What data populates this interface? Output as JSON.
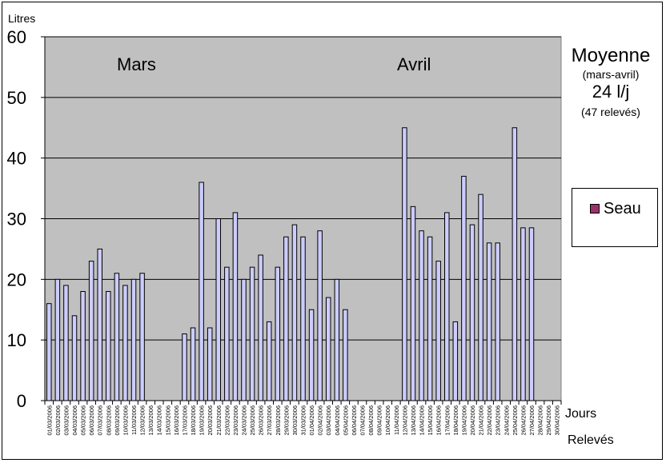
{
  "chart_data": {
    "type": "bar",
    "ylabel": "Litres",
    "ylim": [
      0,
      60
    ],
    "yticks": [
      0,
      10,
      20,
      30,
      40,
      50,
      60
    ],
    "grid": true,
    "plot_background": "#c0c0c0",
    "bar_color": "#ccccff",
    "months": [
      "Mars",
      "Avril"
    ],
    "categories": [
      "01/03/2006",
      "02/03/2006",
      "03/03/2006",
      "04/03/2006",
      "05/03/2006",
      "06/03/2006",
      "07/03/2006",
      "08/03/2006",
      "09/03/2006",
      "10/03/2006",
      "11/03/2006",
      "12/03/2006",
      "13/03/2006",
      "14/03/2006",
      "15/03/2006",
      "16/03/2006",
      "17/03/2006",
      "18/03/2006",
      "19/03/2006",
      "20/03/2006",
      "21/03/2006",
      "22/03/2006",
      "23/03/2006",
      "24/03/2006",
      "25/03/2006",
      "26/03/2006",
      "27/03/2006",
      "28/03/2006",
      "29/03/2006",
      "30/03/2006",
      "31/03/2006",
      "01/04/2006",
      "02/04/2006",
      "03/04/2006",
      "04/04/2006",
      "05/04/2006",
      "06/04/2006",
      "07/04/2006",
      "08/04/2006",
      "09/04/2006",
      "10/04/2006",
      "11/04/2006",
      "12/04/2006",
      "13/04/2006",
      "14/04/2006",
      "15/04/2006",
      "16/04/2006",
      "17/04/2006",
      "18/04/2006",
      "19/04/2006",
      "20/04/2006",
      "21/04/2006",
      "22/04/2006",
      "23/04/2006",
      "24/04/2006",
      "25/04/2006",
      "26/04/2006",
      "27/04/2006",
      "28/04/2006",
      "29/04/2006",
      "30/04/2006"
    ],
    "series": [
      {
        "name": "Seau",
        "values": [
          16,
          20,
          19,
          14,
          18,
          23,
          25,
          18,
          21,
          19,
          20,
          21,
          null,
          null,
          null,
          null,
          11,
          12,
          36,
          12,
          30,
          22,
          31,
          20,
          22,
          24,
          13,
          22,
          27,
          29,
          27,
          15,
          28,
          17,
          20,
          15,
          null,
          null,
          null,
          null,
          null,
          null,
          45,
          32,
          28,
          27,
          23,
          31,
          13,
          37,
          29,
          34,
          26,
          26,
          null,
          45,
          28.5,
          28.5,
          null,
          null,
          null
        ]
      }
    ],
    "xlabel": "Jours",
    "xlabel2": "Relevés"
  },
  "summary": {
    "title": "Moyenne",
    "period": "(mars-avril)",
    "value": "24 l/j",
    "count": "(47 relevés)"
  },
  "legend": {
    "label": "Seau",
    "color": "#993366"
  }
}
